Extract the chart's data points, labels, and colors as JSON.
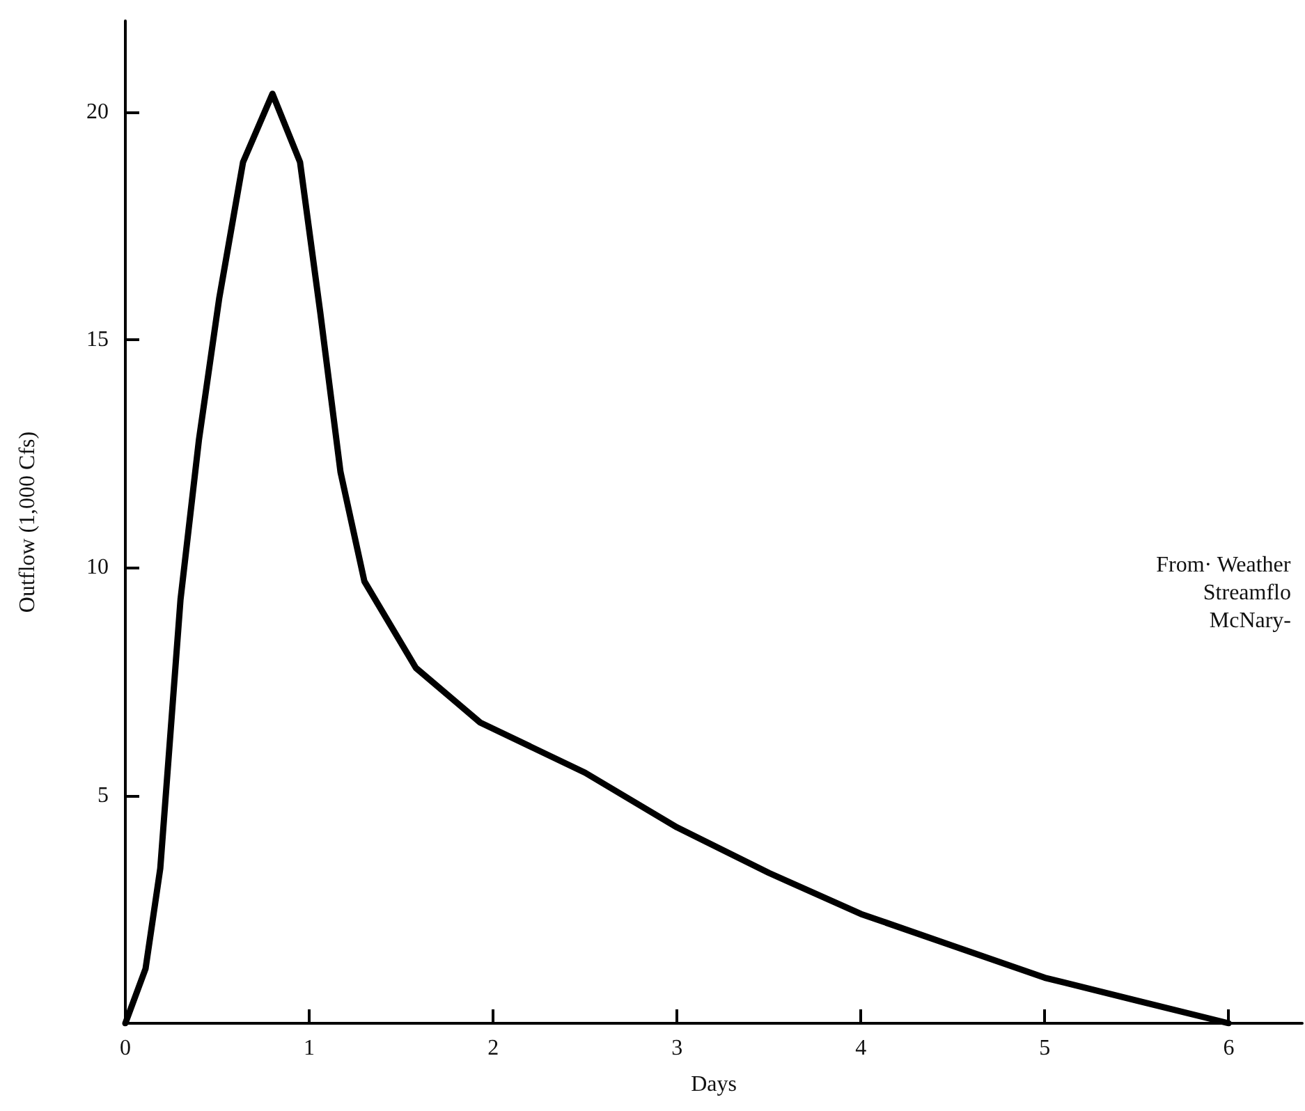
{
  "chart_data": {
    "type": "line",
    "xlabel": "Days",
    "ylabel": "Outflow (1,000 Cfs)",
    "x": [
      0,
      0.11,
      0.19,
      0.3,
      0.4,
      0.51,
      0.64,
      0.8,
      0.95,
      1.06,
      1.17,
      1.3,
      1.58,
      1.93,
      2.5,
      3,
      3.5,
      4,
      4.5,
      5,
      5.5,
      6
    ],
    "series": [
      {
        "color": "#000000",
        "values": [
          0,
          1.2,
          3.4,
          9.3,
          12.8,
          15.9,
          18.9,
          20.4,
          18.9,
          15.6,
          12.1,
          9.7,
          7.8,
          6.6,
          5.5,
          4.3,
          3.3,
          2.4,
          1.7,
          1.0,
          0.5,
          0
        ]
      }
    ],
    "xlim": [
      0,
      6.4
    ],
    "ylim": [
      0,
      22
    ],
    "xticks": [
      0,
      1,
      2,
      3,
      4,
      5,
      6
    ],
    "yticks": [
      {
        "value": 0,
        "label": null
      },
      5,
      10,
      15,
      20
    ],
    "annotations": [
      "From· Weather",
      "Streamflo",
      "McNary-"
    ],
    "grid": false,
    "marker": "none",
    "line_style": "solid"
  }
}
